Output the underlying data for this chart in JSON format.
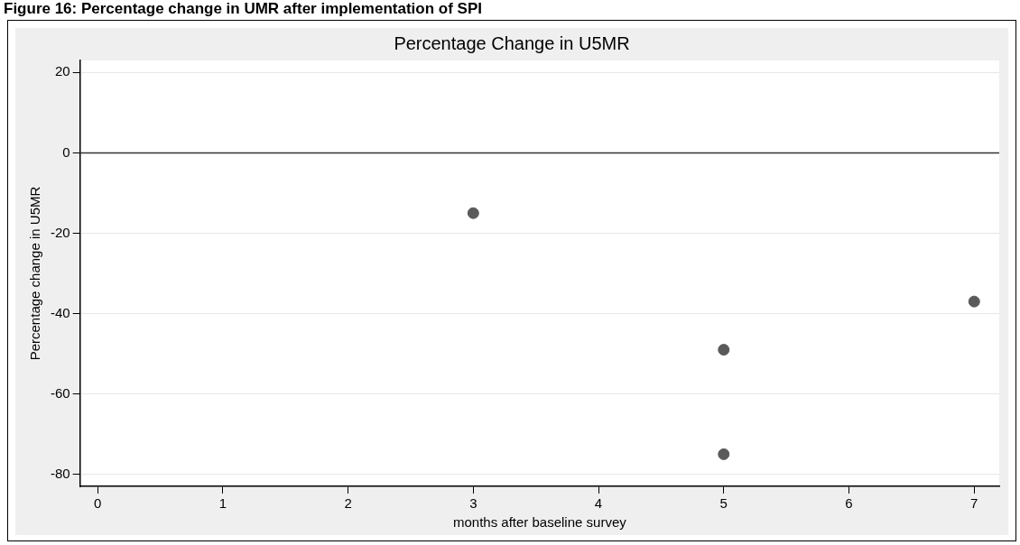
{
  "chart_data": {
    "type": "scatter",
    "title": "Percentage Change in U5MR",
    "xlabel": "months after baseline survey",
    "ylabel": "Percentage change in U5MR",
    "annotations": [
      "Figure 16: Percentage change in UMR after implementation of SPI"
    ],
    "x": [
      3,
      5,
      5,
      7
    ],
    "values": [
      -15,
      -49,
      -75,
      -37
    ],
    "color": "#5a5a5a",
    "marker": "circle",
    "xlim": [
      -0.14,
      7.2
    ],
    "xticks": [
      0,
      1,
      2,
      3,
      4,
      5,
      6,
      7
    ],
    "ylim": [
      -83,
      23
    ],
    "yticks": [
      -80,
      -60,
      -40,
      -20,
      0,
      20
    ],
    "grid": "y",
    "legend": false,
    "ref_lines": [
      {
        "axis": "y",
        "value": 0,
        "color": "#333333"
      }
    ]
  }
}
